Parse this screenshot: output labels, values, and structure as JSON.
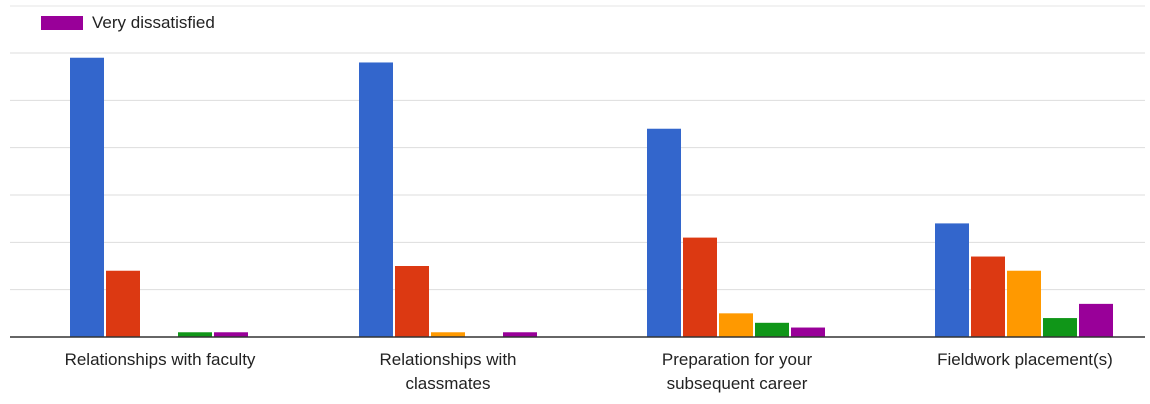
{
  "chart_data": {
    "type": "bar",
    "categories": [
      [
        "Relationships with faculty"
      ],
      [
        "Relationships with",
        "classmates"
      ],
      [
        "Preparation for your",
        "subsequent career"
      ],
      [
        "Fieldwork placement(s)"
      ]
    ],
    "series": [
      {
        "values": [
          59,
          58,
          44,
          24
        ],
        "color": "#3366cc"
      },
      {
        "values": [
          14,
          15,
          21,
          17
        ],
        "color": "#dc3912"
      },
      {
        "values": [
          0,
          1,
          5,
          14
        ],
        "color": "#ff9900"
      },
      {
        "values": [
          1,
          0,
          3,
          4
        ],
        "color": "#109618"
      },
      {
        "name": "Very dissatisfied",
        "values": [
          1,
          1,
          2,
          7
        ],
        "color": "#990099"
      }
    ],
    "ylim": [
      0,
      60
    ],
    "grid": true,
    "legend": "top-left"
  }
}
